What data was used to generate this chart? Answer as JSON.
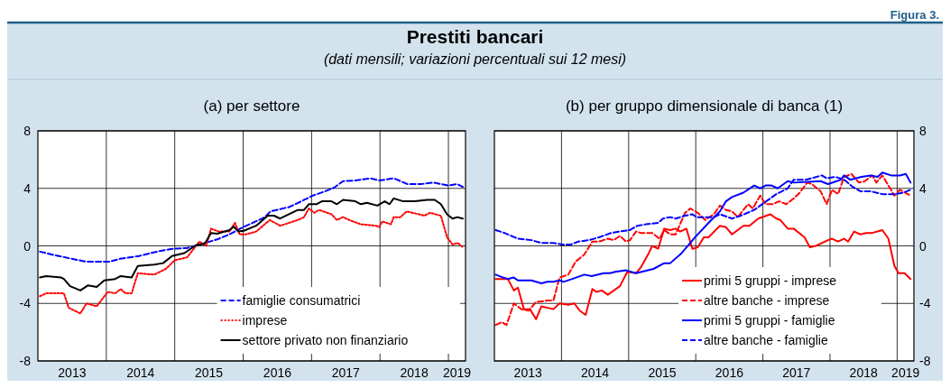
{
  "chart_data": [
    {
      "type": "line",
      "title": "(a) per settore",
      "annotations": [
        "Figura 3.",
        "Prestiti bancari",
        "(dati mensili; variazioni percentuali sui 12 mesi)"
      ],
      "xlim": [
        2013,
        2019.25
      ],
      "ylim": [
        -8,
        8
      ],
      "yticks": [
        -8,
        -4,
        0,
        4,
        8
      ],
      "xticks": [
        {
          "value": 2013.5,
          "label": "2013"
        },
        {
          "value": 2014.5,
          "label": "2014"
        },
        {
          "value": 2015.5,
          "label": "2015"
        },
        {
          "value": 2016.5,
          "label": "2016"
        },
        {
          "value": 2017.5,
          "label": "2017"
        },
        {
          "value": 2018.5,
          "label": "2018"
        },
        {
          "value": 2019.125,
          "label": "2019"
        },
        {
          "value": 2014,
          "label": null
        },
        {
          "value": 2015,
          "label": null
        },
        {
          "value": 2016,
          "label": null
        },
        {
          "value": 2017,
          "label": null
        },
        {
          "value": 2018,
          "label": null
        },
        {
          "value": 2019,
          "label": null
        }
      ],
      "grid": true,
      "legend": "bottom right",
      "series": [
        {
          "name": "famiglie consumatrici",
          "color": "#0000ff",
          "line_style": "dashed",
          "x": [
            2013.03,
            2013.2,
            2013.4,
            2013.7,
            2014.04,
            2014.2,
            2014.48,
            2014.74,
            2014.96,
            2015.18,
            2015.44,
            2015.62,
            2015.8,
            2016.0,
            2016.23,
            2016.32,
            2016.4,
            2016.67,
            2016.85,
            2017.02,
            2017.2,
            2017.33,
            2017.46,
            2017.64,
            2017.86,
            2017.99,
            2018.2,
            2018.4,
            2018.6,
            2018.78,
            2019.0,
            2019.13,
            2019.21
          ],
          "values": [
            -0.4,
            -0.6,
            -0.8,
            -1.1,
            -1.1,
            -0.9,
            -0.7,
            -0.4,
            -0.2,
            -0.15,
            0.2,
            0.45,
            0.8,
            1.3,
            1.8,
            2.0,
            2.4,
            2.7,
            3.1,
            3.5,
            3.8,
            4.05,
            4.5,
            4.55,
            4.7,
            4.55,
            4.7,
            4.3,
            4.3,
            4.4,
            4.2,
            4.3,
            4.1
          ]
        },
        {
          "name": "imprese",
          "color": "#ff0000",
          "line_style": "dotted",
          "x": [
            2013.03,
            2013.12,
            2013.38,
            2013.45,
            2013.62,
            2013.71,
            2013.86,
            2014.02,
            2014.13,
            2014.21,
            2014.28,
            2014.37,
            2014.46,
            2014.7,
            2014.87,
            2015.0,
            2015.18,
            2015.36,
            2015.46,
            2015.53,
            2015.64,
            2015.8,
            2015.88,
            2015.95,
            2016.04,
            2016.19,
            2016.39,
            2016.54,
            2016.8,
            2016.89,
            2016.96,
            2017.04,
            2017.11,
            2017.29,
            2017.37,
            2017.46,
            2017.55,
            2017.72,
            2017.94,
            2017.99,
            2018.03,
            2018.16,
            2018.2,
            2018.3,
            2018.39,
            2018.65,
            2018.73,
            2018.89,
            2018.98,
            2019.06,
            2019.14,
            2019.21
          ],
          "values": [
            -3.5,
            -3.3,
            -3.3,
            -4.3,
            -4.7,
            -4.0,
            -4.2,
            -3.2,
            -3.3,
            -3.0,
            -3.3,
            -3.3,
            -1.9,
            -2.0,
            -1.6,
            -1.0,
            -0.8,
            0.3,
            0.0,
            1.2,
            1.0,
            1.0,
            1.6,
            0.8,
            0.8,
            1.0,
            1.8,
            1.4,
            1.8,
            2.0,
            2.6,
            2.3,
            2.5,
            2.2,
            1.8,
            2.0,
            1.8,
            1.5,
            1.4,
            1.3,
            1.7,
            1.5,
            2.0,
            2.0,
            2.4,
            2.1,
            2.3,
            2.1,
            0.6,
            0.1,
            0.2,
            -0.1
          ]
        },
        {
          "name": "settore privato non finanziario",
          "color": "#000000",
          "line_style": "solid",
          "x": [
            2013.03,
            2013.12,
            2013.34,
            2013.38,
            2013.47,
            2013.62,
            2013.73,
            2013.86,
            2013.97,
            2014.13,
            2014.21,
            2014.37,
            2014.46,
            2014.7,
            2014.83,
            2014.96,
            2015.14,
            2015.31,
            2015.44,
            2015.53,
            2015.62,
            2015.8,
            2015.86,
            2015.93,
            2016.01,
            2016.19,
            2016.36,
            2016.45,
            2016.54,
            2016.67,
            2016.8,
            2016.89,
            2016.96,
            2017.07,
            2017.15,
            2017.29,
            2017.37,
            2017.46,
            2017.64,
            2017.72,
            2017.81,
            2017.96,
            2018.07,
            2018.14,
            2018.2,
            2018.34,
            2018.51,
            2018.69,
            2018.8,
            2018.89,
            2018.98,
            2019.06,
            2019.13,
            2019.21
          ],
          "values": [
            -2.2,
            -2.1,
            -2.2,
            -2.3,
            -2.8,
            -3.1,
            -2.75,
            -2.85,
            -2.4,
            -2.3,
            -2.1,
            -2.2,
            -1.4,
            -1.3,
            -1.2,
            -0.7,
            -0.5,
            0.05,
            0.15,
            0.9,
            0.85,
            1.1,
            1.35,
            1.0,
            1.05,
            1.4,
            2.1,
            2.1,
            1.9,
            2.2,
            2.5,
            2.5,
            2.9,
            2.9,
            3.1,
            3.1,
            2.9,
            3.2,
            3.1,
            2.9,
            3.0,
            2.8,
            3.1,
            2.9,
            3.3,
            3.1,
            3.1,
            3.2,
            3.2,
            2.9,
            2.2,
            1.9,
            2.0,
            1.9
          ]
        }
      ]
    },
    {
      "type": "line",
      "title": "(b) per gruppo dimensionale di banca (1)",
      "xlim": [
        2013,
        2019.25
      ],
      "ylim": [
        -8,
        8
      ],
      "yticks": [
        -8,
        -4,
        0,
        4,
        8
      ],
      "xticks": [
        {
          "value": 2013.5,
          "label": "2013"
        },
        {
          "value": 2014.5,
          "label": "2014"
        },
        {
          "value": 2015.5,
          "label": "2015"
        },
        {
          "value": 2016.5,
          "label": "2016"
        },
        {
          "value": 2017.5,
          "label": "2017"
        },
        {
          "value": 2018.5,
          "label": "2018"
        },
        {
          "value": 2019.125,
          "label": "2019"
        },
        {
          "value": 2014,
          "label": null
        },
        {
          "value": 2015,
          "label": null
        },
        {
          "value": 2016,
          "label": null
        },
        {
          "value": 2017,
          "label": null
        },
        {
          "value": 2018,
          "label": null
        },
        {
          "value": 2019,
          "label": null
        }
      ],
      "grid": true,
      "legend": "bottom right",
      "series": [
        {
          "name": "primi 5 gruppi - imprese",
          "color": "#ff0000",
          "line_style": "solid",
          "x": [
            2013.02,
            2013.2,
            2013.29,
            2013.35,
            2013.44,
            2013.53,
            2013.62,
            2013.7,
            2013.88,
            2013.97,
            2014.1,
            2014.19,
            2014.27,
            2014.36,
            2014.46,
            2014.52,
            2014.6,
            2014.69,
            2014.87,
            2014.98,
            2015.11,
            2015.18,
            2015.29,
            2015.35,
            2015.44,
            2015.53,
            2015.62,
            2015.7,
            2015.77,
            2015.86,
            2015.95,
            2016.03,
            2016.12,
            2016.19,
            2016.36,
            2016.45,
            2016.54,
            2016.71,
            2016.8,
            2016.93,
            2017.11,
            2017.2,
            2017.26,
            2017.37,
            2017.46,
            2017.62,
            2017.7,
            2017.79,
            2017.97,
            2018.03,
            2018.12,
            2018.21,
            2018.27,
            2018.36,
            2018.45,
            2018.54,
            2018.63,
            2018.78,
            2018.87,
            2018.96,
            2019.02,
            2019.11,
            2019.2
          ],
          "values": [
            -2.3,
            -2.3,
            -3.1,
            -2.9,
            -4.4,
            -4.4,
            -5.1,
            -4.2,
            -4.4,
            -4.0,
            -4.1,
            -4.0,
            -4.5,
            -4.8,
            -3.0,
            -3.2,
            -3.1,
            -3.4,
            -2.8,
            -1.8,
            -1.9,
            -1.5,
            -0.6,
            0.0,
            -0.2,
            1.2,
            1.1,
            1.2,
            1.0,
            1.2,
            -0.2,
            -0.1,
            0.6,
            0.6,
            1.4,
            1.3,
            0.8,
            1.4,
            1.4,
            1.9,
            2.2,
            1.9,
            1.8,
            1.2,
            1.2,
            0.6,
            -0.1,
            0.0,
            0.4,
            0.5,
            0.3,
            0.5,
            0.3,
            1.0,
            0.8,
            0.9,
            0.9,
            1.1,
            0.5,
            -1.4,
            -1.9,
            -1.9,
            -2.3
          ]
        },
        {
          "name": "altre banche - imprese",
          "color": "#ff0000",
          "line_style": "dashed",
          "x": [
            2013.02,
            2013.11,
            2013.18,
            2013.29,
            2013.4,
            2013.51,
            2013.62,
            2013.79,
            2013.88,
            2013.97,
            2014.1,
            2014.21,
            2014.34,
            2014.46,
            2014.56,
            2014.69,
            2014.78,
            2014.87,
            2014.96,
            2015.02,
            2015.11,
            2015.18,
            2015.35,
            2015.46,
            2015.53,
            2015.62,
            2015.7,
            2015.84,
            2015.92,
            2016.03,
            2016.14,
            2016.27,
            2016.36,
            2016.45,
            2016.54,
            2016.63,
            2016.71,
            2016.78,
            2016.85,
            2016.96,
            2017.04,
            2017.15,
            2017.24,
            2017.35,
            2017.46,
            2017.55,
            2017.66,
            2017.73,
            2017.86,
            2017.95,
            2018.03,
            2018.12,
            2018.21,
            2018.32,
            2018.43,
            2018.52,
            2018.63,
            2018.69,
            2018.78,
            2018.87,
            2018.96,
            2019.04,
            2019.2
          ],
          "values": [
            -5.5,
            -5.3,
            -5.5,
            -4.0,
            -4.4,
            -4.5,
            -3.9,
            -3.8,
            -3.8,
            -2.2,
            -2.0,
            -1.1,
            -0.6,
            0.3,
            0.3,
            0.5,
            0.4,
            0.7,
            0.3,
            0.4,
            1.0,
            0.9,
            0.9,
            0.5,
            1.1,
            0.8,
            0.8,
            2.3,
            2.6,
            2.3,
            1.8,
            2.2,
            2.8,
            2.5,
            2.4,
            2.0,
            2.5,
            2.9,
            2.6,
            3.5,
            2.9,
            2.9,
            3.1,
            2.9,
            3.3,
            3.7,
            4.4,
            4.3,
            3.8,
            2.9,
            3.9,
            3.6,
            4.8,
            5.0,
            4.4,
            4.5,
            4.9,
            4.4,
            4.9,
            4.2,
            3.5,
            3.9,
            3.5
          ]
        },
        {
          "name": "primi 5 gruppi - famiglie",
          "color": "#0000ff",
          "line_style": "solid",
          "x": [
            2013.02,
            2013.13,
            2013.2,
            2013.29,
            2013.35,
            2013.55,
            2013.7,
            2013.79,
            2013.88,
            2013.97,
            2014.03,
            2014.16,
            2014.34,
            2014.45,
            2014.63,
            2014.72,
            2014.8,
            2014.96,
            2015.11,
            2015.37,
            2015.53,
            2015.62,
            2015.79,
            2015.99,
            2016.19,
            2016.36,
            2016.45,
            2016.54,
            2016.71,
            2016.87,
            2016.96,
            2017.04,
            2017.13,
            2017.22,
            2017.37,
            2017.46,
            2017.86,
            2017.97,
            2018.16,
            2018.21,
            2018.3,
            2018.47,
            2018.6,
            2018.71,
            2018.78,
            2018.91,
            2019.04,
            2019.13,
            2019.2
          ],
          "values": [
            -2.0,
            -2.2,
            -2.3,
            -2.2,
            -2.4,
            -2.4,
            -2.6,
            -2.5,
            -2.5,
            -2.4,
            -2.5,
            -2.3,
            -2.0,
            -2.1,
            -1.9,
            -1.9,
            -1.8,
            -1.7,
            -1.9,
            -1.6,
            -1.2,
            -1.2,
            -0.5,
            0.6,
            1.6,
            2.4,
            3.1,
            3.4,
            3.7,
            4.2,
            4.0,
            4.2,
            4.2,
            4.0,
            4.5,
            4.4,
            4.5,
            4.3,
            4.6,
            4.9,
            4.6,
            4.8,
            4.9,
            4.8,
            5.1,
            4.9,
            4.9,
            5.0,
            4.4
          ]
        },
        {
          "name": "altre banche - famiglie",
          "color": "#0000ff",
          "line_style": "dashed",
          "x": [
            2013.02,
            2013.15,
            2013.35,
            2013.55,
            2013.7,
            2013.88,
            2014.01,
            2014.14,
            2014.25,
            2014.41,
            2014.56,
            2014.74,
            2014.87,
            2015.02,
            2015.13,
            2015.26,
            2015.44,
            2015.51,
            2015.62,
            2015.7,
            2015.84,
            2015.95,
            2016.01,
            2016.1,
            2016.27,
            2016.36,
            2016.54,
            2016.67,
            2016.87,
            2017.02,
            2017.2,
            2017.37,
            2017.46,
            2017.64,
            2017.88,
            2017.95,
            2018.08,
            2018.21,
            2018.34,
            2018.45,
            2018.6,
            2018.78,
            2018.96,
            2019.09,
            2019.2
          ],
          "values": [
            1.1,
            0.9,
            0.5,
            0.4,
            0.2,
            0.2,
            0.1,
            0.1,
            0.3,
            0.4,
            0.6,
            0.9,
            1.0,
            1.1,
            1.4,
            1.5,
            1.6,
            1.9,
            2.0,
            1.9,
            2.1,
            2.2,
            2.0,
            2.0,
            2.0,
            2.2,
            1.9,
            2.1,
            2.5,
            3.0,
            3.6,
            4.0,
            4.6,
            4.6,
            4.9,
            4.7,
            4.8,
            4.6,
            4.1,
            3.8,
            3.8,
            3.6,
            3.6,
            3.7,
            3.9
          ]
        }
      ]
    }
  ]
}
